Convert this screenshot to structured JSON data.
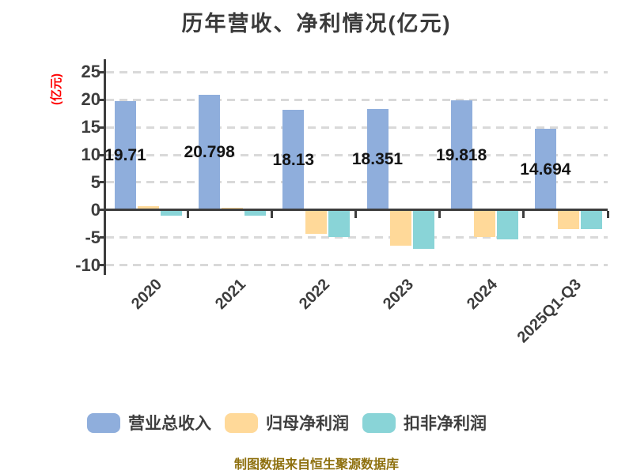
{
  "chart_data": {
    "type": "bar",
    "title": "历年营收、净利情况(亿元)",
    "ylabel": "(亿元)",
    "footnote": "制图数据来自恒生聚源数据库",
    "categories": [
      "2020",
      "2021",
      "2022",
      "2023",
      "2024",
      "2025Q1-Q3"
    ],
    "series": [
      {
        "name": "营业总收入",
        "color": "#8FAEDC",
        "values": [
          19.71,
          20.798,
          18.13,
          18.351,
          19.818,
          14.694
        ]
      },
      {
        "name": "归母净利润",
        "color": "#FFD999",
        "values": [
          0.76,
          0.47,
          -4.3,
          -6.5,
          -4.9,
          -3.5
        ]
      },
      {
        "name": "扣非净利润",
        "color": "#89D4D7",
        "values": [
          -0.95,
          -1.0,
          -4.8,
          -7.0,
          -5.3,
          -3.45
        ]
      }
    ],
    "value_labels": [
      "19.71",
      "20.798",
      "18.13",
      "18.351",
      "19.818",
      "14.694"
    ],
    "value_labels_series": "营业总收入",
    "yticks": [
      25,
      20,
      15,
      10,
      5,
      0,
      -5,
      -10
    ],
    "ylim": [
      -11.3,
      27.3
    ],
    "grid": true,
    "grid_style": "dashed",
    "legend_position": "bottom",
    "colors": {
      "axis": "#3D3D3D",
      "grid": "#D9D9D9",
      "ylabel_text": "#FF0000",
      "value_label_text": "#141414",
      "footnote_text": "#8E700E",
      "background": "#FFFFFF"
    }
  }
}
